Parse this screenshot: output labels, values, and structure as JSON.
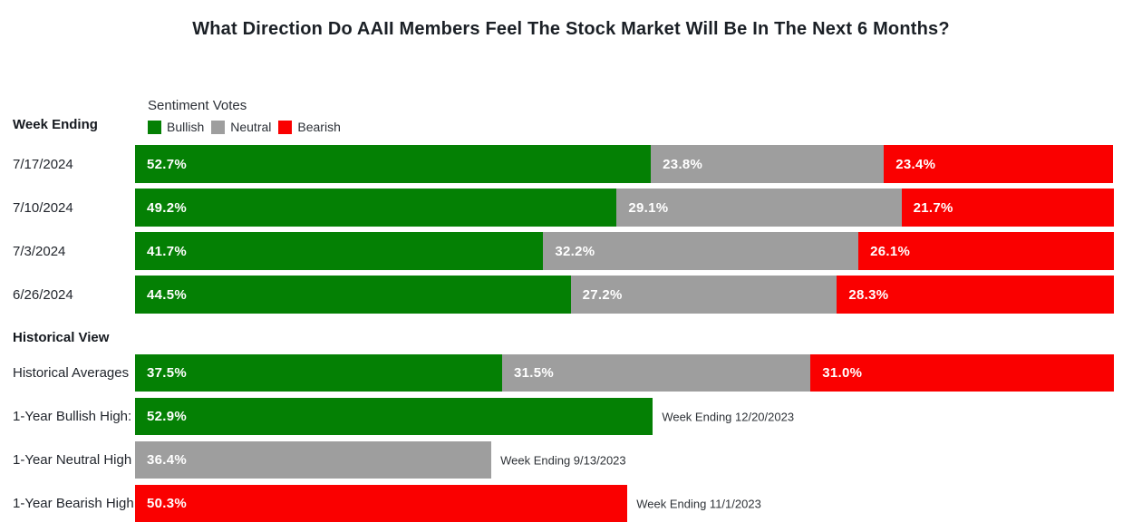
{
  "title": "What Direction Do AAII Members Feel The Stock Market Will Be In The Next 6 Months?",
  "legend": {
    "title": "Sentiment Votes"
  },
  "colors": {
    "bullish": "#048004",
    "neutral": "#9e9e9e",
    "bearish": "#fa0000",
    "background": "#ffffff",
    "text_dark": "#1b2026"
  },
  "chart_data": {
    "type": "bar",
    "orientation": "horizontal-stacked",
    "title": "What Direction Do AAII Members Feel The Stock Market Will Be In The Next 6 Months?",
    "legend_title": "Sentiment Votes",
    "legend_position": "top-left",
    "series": [
      "Bullish",
      "Neutral",
      "Bearish"
    ],
    "series_colors": {
      "Bullish": "#048004",
      "Neutral": "#9e9e9e",
      "Bearish": "#fa0000"
    },
    "value_unit": "%",
    "xlim": [
      0,
      100
    ],
    "grid": false,
    "sections": [
      {
        "heading": "Week Ending",
        "rows": [
          {
            "label": "7/17/2024",
            "segments": [
              {
                "series": "Bullish",
                "value": 52.7
              },
              {
                "series": "Neutral",
                "value": 23.8
              },
              {
                "series": "Bearish",
                "value": 23.4
              }
            ]
          },
          {
            "label": "7/10/2024",
            "segments": [
              {
                "series": "Bullish",
                "value": 49.2
              },
              {
                "series": "Neutral",
                "value": 29.1
              },
              {
                "series": "Bearish",
                "value": 21.7
              }
            ]
          },
          {
            "label": "7/3/2024",
            "segments": [
              {
                "series": "Bullish",
                "value": 41.7
              },
              {
                "series": "Neutral",
                "value": 32.2
              },
              {
                "series": "Bearish",
                "value": 26.1
              }
            ]
          },
          {
            "label": "6/26/2024",
            "segments": [
              {
                "series": "Bullish",
                "value": 44.5
              },
              {
                "series": "Neutral",
                "value": 27.2
              },
              {
                "series": "Bearish",
                "value": 28.3
              }
            ]
          }
        ]
      },
      {
        "heading": "Historical View",
        "rows": [
          {
            "label": "Historical Averages",
            "segments": [
              {
                "series": "Bullish",
                "value": 37.5
              },
              {
                "series": "Neutral",
                "value": 31.5
              },
              {
                "series": "Bearish",
                "value": 31.0
              }
            ]
          },
          {
            "label": "1-Year Bullish High:",
            "segments": [
              {
                "series": "Bullish",
                "value": 52.9
              }
            ],
            "annotation": "Week Ending 12/20/2023"
          },
          {
            "label": "1-Year Neutral High",
            "segments": [
              {
                "series": "Neutral",
                "value": 36.4
              }
            ],
            "annotation": "Week Ending 9/13/2023"
          },
          {
            "label": "1-Year Bearish High",
            "segments": [
              {
                "series": "Bearish",
                "value": 50.3
              }
            ],
            "annotation": "Week Ending 11/1/2023"
          }
        ]
      }
    ]
  }
}
